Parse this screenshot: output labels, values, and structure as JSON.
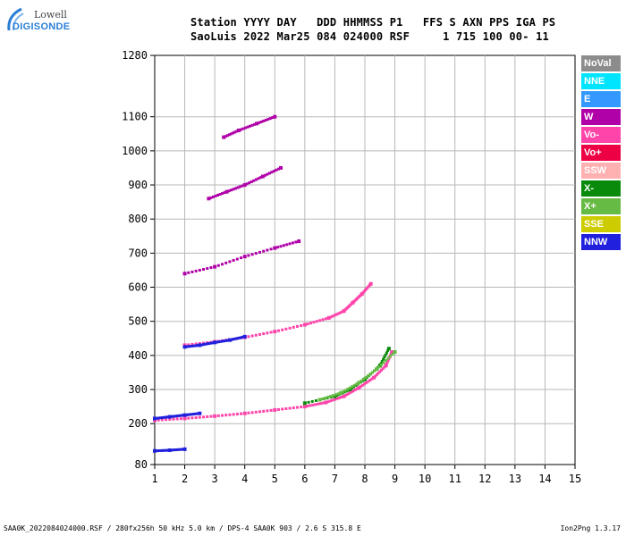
{
  "logo": {
    "line1": "Lowell",
    "line2": "DIGISONDE"
  },
  "header": {
    "line1": "Station YYYY DAY   DDD HHMMSS P1   FFS S AXN PPS IGA PS",
    "line2": "SaoLuis 2022 Mar25 084 024000 RSF     1 715 100 00- 11"
  },
  "legend": [
    {
      "label": "NoVal",
      "color": "#8c8c8c"
    },
    {
      "label": "NNE",
      "color": "#00e5ff"
    },
    {
      "label": "E",
      "color": "#3399ff"
    },
    {
      "label": "W",
      "color": "#b000a8"
    },
    {
      "label": "Vo-",
      "color": "#ff44aa"
    },
    {
      "label": "Vo+",
      "color": "#ee0044"
    },
    {
      "label": "SSW",
      "color": "#ffb0b0"
    },
    {
      "label": "X-",
      "color": "#0a8a0a"
    },
    {
      "label": "X+",
      "color": "#66bb44"
    },
    {
      "label": "SSE",
      "color": "#cccc00"
    },
    {
      "label": "NNW",
      "color": "#2020dd"
    }
  ],
  "footer": {
    "left": "SAA0K_2022084024000.RSF / 280fx256h 50 kHz 5.0 km / DPS-4 SAA0K 903 / 2.6 S 315.8 E",
    "right": "Ion2Png 1.3.17"
  },
  "chart_data": {
    "type": "scatter",
    "xlim": [
      1,
      15
    ],
    "ylim": [
      80,
      1280
    ],
    "x_ticks": [
      1,
      2,
      3,
      4,
      5,
      6,
      7,
      8,
      9,
      10,
      11,
      12,
      13,
      14,
      15
    ],
    "y_ticks": [
      80,
      200,
      300,
      400,
      500,
      600,
      700,
      800,
      900,
      1000,
      1100,
      1280
    ],
    "grid": true,
    "legend_position": "right",
    "series": [
      {
        "legend": "Vo-",
        "traces": [
          {
            "x": [
              1.0,
              2.0,
              3.0,
              4.0,
              5.0,
              6.0,
              6.7,
              7.3,
              7.8,
              8.3,
              8.7,
              8.9
            ],
            "y": [
              210,
              215,
              222,
              230,
              240,
              250,
              262,
              280,
              305,
              335,
              370,
              410
            ]
          },
          {
            "x": [
              2.0,
              3.0,
              4.0,
              5.0,
              6.0,
              6.8,
              7.3,
              7.6,
              7.9,
              8.2
            ],
            "y": [
              430,
              440,
              453,
              470,
              490,
              510,
              530,
              555,
              580,
              610
            ]
          }
        ]
      },
      {
        "legend": "W",
        "traces": [
          {
            "x": [
              2.0,
              3.0,
              4.0,
              5.0,
              5.8
            ],
            "y": [
              640,
              660,
              690,
              715,
              735
            ]
          },
          {
            "x": [
              2.8,
              3.4,
              4.0,
              4.6,
              5.2
            ],
            "y": [
              860,
              880,
              900,
              925,
              950
            ]
          },
          {
            "x": [
              3.3,
              3.8,
              4.4,
              5.0
            ],
            "y": [
              1040,
              1060,
              1080,
              1100
            ]
          }
        ]
      },
      {
        "legend": "NNW",
        "traces": [
          {
            "x": [
              1.0,
              1.5,
              2.0,
              2.5
            ],
            "y": [
              215,
              220,
              225,
              230
            ]
          },
          {
            "x": [
              2.0,
              2.5,
              3.0,
              3.5,
              4.0
            ],
            "y": [
              425,
              430,
              438,
              445,
              455
            ]
          },
          {
            "x": [
              1.0,
              1.5,
              2.0
            ],
            "y": [
              120,
              122,
              125
            ]
          }
        ]
      },
      {
        "legend": "X-",
        "traces": [
          {
            "x": [
              6.0,
              7.0,
              7.5,
              8.0,
              8.5,
              8.8
            ],
            "y": [
              260,
              280,
              300,
              330,
              370,
              420
            ]
          }
        ]
      },
      {
        "legend": "X+",
        "traces": [
          {
            "x": [
              6.5,
              7.2,
              7.8,
              8.4,
              9.0
            ],
            "y": [
              270,
              290,
              320,
              360,
              410
            ]
          }
        ]
      }
    ]
  }
}
